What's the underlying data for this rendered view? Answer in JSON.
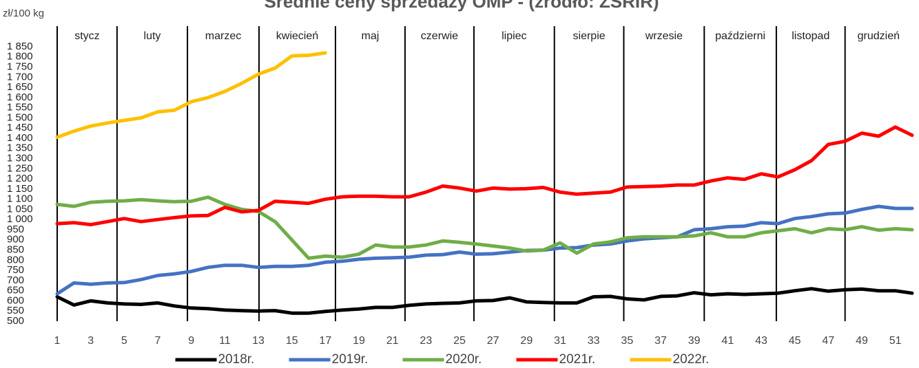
{
  "chart_data": {
    "type": "line",
    "title": "Średnie ceny sprzedaży OMP - (źródło: ZSRIR)",
    "y_label": "zł/100 kg",
    "months": [
      "stycz",
      "luty",
      "marzec",
      "kwiecień",
      "maj",
      "czerwie",
      "lipiec",
      "sierpie",
      "wrzesie",
      "październi",
      "listopad",
      "grudzień"
    ],
    "month_boundaries": [
      4.57,
      8.77,
      13.04,
      17.6,
      21.75,
      25.86,
      30.66,
      34.8,
      39.6,
      43.9,
      48
    ],
    "x": [
      1,
      2,
      3,
      4,
      5,
      6,
      7,
      8,
      9,
      10,
      11,
      12,
      13,
      14,
      15,
      16,
      17,
      18,
      19,
      20,
      21,
      22,
      23,
      24,
      25,
      26,
      27,
      28,
      29,
      30,
      31,
      32,
      33,
      34,
      35,
      36,
      37,
      38,
      39,
      40,
      41,
      42,
      43,
      44,
      45,
      46,
      47,
      48,
      49,
      50,
      51,
      52
    ],
    "xlim": [
      1,
      52
    ],
    "xticks": [
      1,
      3,
      5,
      7,
      9,
      11,
      13,
      15,
      17,
      19,
      21,
      23,
      25,
      27,
      29,
      31,
      33,
      35,
      37,
      39,
      41,
      43,
      45,
      47,
      49,
      51
    ],
    "ylim": [
      500,
      1850
    ],
    "yticks": [
      500,
      550,
      600,
      650,
      700,
      750,
      800,
      850,
      900,
      950,
      {
        "value": 1000,
        "label": "1 000"
      },
      {
        "value": 1050,
        "label": "1 050"
      },
      {
        "value": 1100,
        "label": "1 100"
      },
      {
        "value": 1150,
        "label": "1 150"
      },
      {
        "value": 1200,
        "label": "1 200"
      },
      {
        "value": 1250,
        "label": "1 250"
      },
      {
        "value": 1300,
        "label": "1 300"
      },
      {
        "value": 1350,
        "label": "1 350"
      },
      {
        "value": 1400,
        "label": "1 400"
      },
      {
        "value": 1450,
        "label": "1 450"
      },
      {
        "value": 1500,
        "label": "1 500"
      },
      {
        "value": 1550,
        "label": "1 550"
      },
      {
        "value": 1600,
        "label": "1 600"
      },
      {
        "value": 1650,
        "label": "1 650"
      },
      {
        "value": 1700,
        "label": "1 700"
      },
      {
        "value": 1750,
        "label": "1 750"
      },
      {
        "value": 1800,
        "label": "1 800"
      },
      {
        "value": 1850,
        "label": "1 850"
      }
    ],
    "legend": "bottom",
    "series": [
      {
        "name": "2018r.",
        "color": "#000000",
        "values": [
          620,
          580,
          600,
          590,
          585,
          583,
          590,
          575,
          565,
          562,
          555,
          552,
          550,
          552,
          540,
          540,
          548,
          555,
          560,
          568,
          568,
          578,
          585,
          588,
          590,
          600,
          602,
          615,
          595,
          592,
          590,
          590,
          620,
          622,
          610,
          605,
          622,
          625,
          640,
          630,
          635,
          632,
          635,
          638,
          650,
          660,
          648,
          655,
          658,
          650,
          650,
          638
        ]
      },
      {
        "name": "2019r.",
        "color": "#4472c4",
        "values": [
          635,
          688,
          682,
          688,
          690,
          705,
          725,
          733,
          745,
          765,
          775,
          775,
          765,
          770,
          770,
          775,
          790,
          795,
          805,
          810,
          812,
          815,
          825,
          828,
          840,
          830,
          832,
          840,
          848,
          850,
          860,
          862,
          875,
          880,
          895,
          905,
          910,
          915,
          950,
          955,
          965,
          968,
          985,
          980,
          1005,
          1015,
          1028,
          1032,
          1050,
          1065,
          1055,
          1055
        ]
      },
      {
        "name": "2020r.",
        "color": "#70ad47",
        "values": [
          1075,
          1065,
          1085,
          1090,
          1092,
          1098,
          1092,
          1088,
          1090,
          1110,
          1075,
          1050,
          1040,
          990,
          900,
          810,
          820,
          815,
          830,
          875,
          865,
          865,
          875,
          895,
          888,
          880,
          870,
          860,
          845,
          850,
          885,
          835,
          880,
          890,
          910,
          915,
          915,
          915,
          920,
          935,
          915,
          915,
          935,
          945,
          955,
          935,
          955,
          950,
          965,
          948,
          955,
          950
        ]
      },
      {
        "name": "2021r.",
        "color": "#ff0000",
        "values": [
          980,
          985,
          975,
          990,
          1005,
          990,
          1000,
          1010,
          1018,
          1020,
          1060,
          1038,
          1045,
          1090,
          1085,
          1080,
          1100,
          1112,
          1115,
          1115,
          1112,
          1112,
          1135,
          1165,
          1155,
          1140,
          1155,
          1150,
          1152,
          1158,
          1135,
          1125,
          1130,
          1135,
          1160,
          1162,
          1165,
          1170,
          1170,
          1190,
          1205,
          1198,
          1225,
          1210,
          1245,
          1290,
          1370,
          1385,
          1425,
          1410,
          1455,
          1415
        ]
      },
      {
        "name": "2022r.",
        "color": "#ffc000",
        "values": [
          1405,
          1435,
          1460,
          1475,
          1488,
          1500,
          1530,
          1538,
          1580,
          1600,
          1630,
          1670,
          1715,
          1745,
          1805,
          1808,
          1820,
          null,
          null,
          null,
          null,
          null,
          null,
          null,
          null,
          null,
          null,
          null,
          null,
          null,
          null,
          null,
          null,
          null,
          null,
          null,
          null,
          null,
          null,
          null,
          null,
          null,
          null,
          null,
          null,
          null,
          null,
          null,
          null,
          null,
          null,
          null
        ]
      }
    ]
  }
}
